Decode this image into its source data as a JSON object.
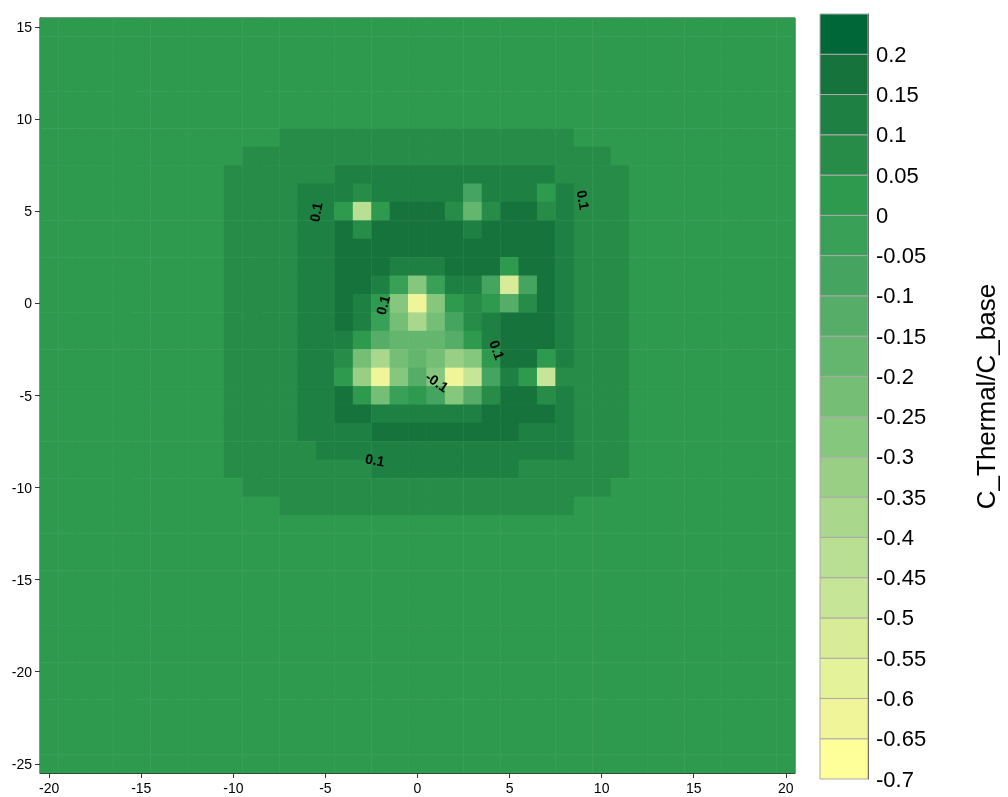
{
  "chart_data": {
    "type": "heatmap",
    "clabel": "C_Thermal/C_base",
    "categories": [
      "-20",
      null,
      null,
      null,
      null,
      "-15",
      null,
      null,
      null,
      null,
      "-10",
      null,
      null,
      null,
      null,
      "-5",
      null,
      null,
      null,
      null,
      "0",
      null,
      null,
      null,
      null,
      "5",
      null,
      null,
      null,
      null,
      "10",
      null,
      null,
      null,
      null,
      "15",
      null,
      null,
      null,
      null,
      "20"
    ],
    "y_categories": [
      "15",
      null,
      null,
      null,
      null,
      "10",
      null,
      null,
      null,
      null,
      "5",
      null,
      null,
      null,
      null,
      "0",
      null,
      null,
      null,
      null,
      "-5",
      null,
      null,
      null,
      null,
      "-10",
      null,
      null,
      null,
      null,
      "-15",
      null,
      null,
      null,
      null,
      "-20",
      null,
      null,
      null,
      null,
      "-25"
    ],
    "clim": [
      -0.7,
      0.25
    ],
    "cticks": [
      -0.7,
      -0.65,
      -0.6,
      -0.55,
      -0.5,
      -0.45,
      -0.4,
      -0.35,
      -0.3,
      -0.25,
      -0.2,
      -0.15,
      -0.1,
      -0.05,
      0,
      0.05,
      0.1,
      0.15,
      0.2
    ],
    "colors": [
      "#ffff99",
      "#f0f59a",
      "#e4f29a",
      "#d8ec98",
      "#c7e596",
      "#b8df92",
      "#a9d88c",
      "#98cf85",
      "#86c77e",
      "#74be76",
      "#64b66f",
      "#55ad67",
      "#45a45f",
      "#38a057",
      "#2e9a4e",
      "#268c48",
      "#1f8043",
      "#17733c",
      "#006838"
    ],
    "annotations": [
      "0.1",
      "0.1",
      "0.1",
      "0.1",
      "-0.1",
      "0.1"
    ],
    "cells": [
      [
        0.03,
        0.03,
        0.03,
        0.03,
        0.03,
        0.03,
        0.03,
        0.03,
        0.03,
        0.03,
        0.03,
        0.03,
        0.03,
        0.03,
        0.03,
        0.03,
        0.03,
        0.03,
        0.03,
        0.03,
        0.03,
        0.03,
        0.03,
        0.03,
        0.03,
        0.03,
        0.03,
        0.03,
        0.03,
        0.03,
        0.03,
        0.03,
        0.03,
        0.03,
        0.03,
        0.03,
        0.03,
        0.03,
        0.03,
        0.03,
        0.03
      ],
      [
        0.03,
        0.03,
        0.03,
        0.03,
        0.03,
        0.03,
        0.03,
        0.03,
        0.03,
        0.03,
        0.03,
        0.03,
        0.03,
        0.03,
        0.03,
        0.03,
        0.03,
        0.03,
        0.03,
        0.03,
        0.03,
        0.03,
        0.03,
        0.03,
        0.03,
        0.03,
        0.03,
        0.03,
        0.03,
        0.03,
        0.03,
        0.03,
        0.03,
        0.03,
        0.03,
        0.03,
        0.03,
        0.03,
        0.03,
        0.03,
        0.03
      ],
      [
        0.03,
        0.03,
        0.03,
        0.03,
        0.03,
        0.03,
        0.03,
        0.03,
        0.03,
        0.03,
        0.03,
        0.03,
        0.03,
        0.03,
        0.03,
        0.03,
        0.03,
        0.03,
        0.03,
        0.03,
        0.03,
        0.03,
        0.03,
        0.03,
        0.03,
        0.03,
        0.03,
        0.03,
        0.03,
        0.03,
        0.03,
        0.03,
        0.03,
        0.03,
        0.03,
        0.03,
        0.03,
        0.03,
        0.03,
        0.03,
        0.03
      ],
      [
        0.03,
        0.03,
        0.03,
        0.03,
        0.03,
        0.03,
        0.03,
        0.03,
        0.03,
        0.03,
        0.03,
        0.03,
        0.03,
        0.03,
        0.03,
        0.03,
        0.03,
        0.03,
        0.03,
        0.03,
        0.03,
        0.03,
        0.03,
        0.03,
        0.03,
        0.03,
        0.03,
        0.03,
        0.03,
        0.03,
        0.03,
        0.03,
        0.03,
        0.03,
        0.03,
        0.03,
        0.03,
        0.03,
        0.03,
        0.03,
        0.03
      ],
      [
        0.03,
        0.03,
        0.03,
        0.03,
        0.03,
        0.03,
        0.03,
        0.03,
        0.03,
        0.03,
        0.03,
        0.03,
        0.03,
        0.03,
        0.03,
        0.03,
        0.03,
        0.03,
        0.03,
        0.03,
        0.03,
        0.03,
        0.03,
        0.03,
        0.03,
        0.03,
        0.03,
        0.03,
        0.03,
        0.03,
        0.03,
        0.03,
        0.03,
        0.03,
        0.03,
        0.03,
        0.03,
        0.03,
        0.03,
        0.03,
        0.03
      ],
      [
        0.03,
        0.03,
        0.03,
        0.03,
        0.03,
        0.03,
        0.03,
        0.03,
        0.03,
        0.03,
        0.03,
        0.03,
        0.03,
        0.03,
        0.03,
        0.03,
        0.03,
        0.03,
        0.03,
        0.03,
        0.03,
        0.03,
        0.03,
        0.03,
        0.03,
        0.03,
        0.03,
        0.03,
        0.03,
        0.03,
        0.03,
        0.03,
        0.03,
        0.03,
        0.03,
        0.03,
        0.03,
        0.03,
        0.03,
        0.03,
        0.03
      ],
      [
        0.03,
        0.03,
        0.03,
        0.03,
        0.03,
        0.03,
        0.03,
        0.03,
        0.03,
        0.03,
        0.03,
        0.03,
        0.03,
        0.07,
        0.07,
        0.07,
        0.07,
        0.07,
        0.07,
        0.07,
        0.07,
        0.07,
        0.07,
        0.07,
        0.07,
        0.07,
        0.07,
        0.07,
        0.07,
        0.03,
        0.03,
        0.03,
        0.03,
        0.03,
        0.03,
        0.03,
        0.03,
        0.03,
        0.03,
        0.03,
        0.03
      ],
      [
        0.03,
        0.03,
        0.03,
        0.03,
        0.03,
        0.03,
        0.03,
        0.03,
        0.03,
        0.03,
        0.03,
        0.07,
        0.07,
        0.07,
        0.07,
        0.07,
        0.07,
        0.07,
        0.07,
        0.07,
        0.07,
        0.07,
        0.07,
        0.07,
        0.07,
        0.07,
        0.07,
        0.07,
        0.07,
        0.07,
        0.07,
        0.03,
        0.03,
        0.03,
        0.03,
        0.03,
        0.03,
        0.03,
        0.03,
        0.03,
        0.03
      ],
      [
        0.03,
        0.03,
        0.03,
        0.03,
        0.03,
        0.03,
        0.03,
        0.03,
        0.03,
        0.03,
        0.07,
        0.07,
        0.07,
        0.07,
        0.07,
        0.07,
        0.12,
        0.12,
        0.12,
        0.12,
        0.12,
        0.12,
        0.12,
        0.12,
        0.12,
        0.12,
        0.12,
        0.12,
        0.07,
        0.07,
        0.07,
        0.07,
        0.03,
        0.03,
        0.03,
        0.03,
        0.03,
        0.03,
        0.03,
        0.03,
        0.03
      ],
      [
        0.03,
        0.03,
        0.03,
        0.03,
        0.03,
        0.03,
        0.03,
        0.03,
        0.03,
        0.03,
        0.07,
        0.07,
        0.07,
        0.07,
        0.12,
        0.12,
        0.12,
        0.05,
        0.12,
        0.12,
        0.12,
        0.12,
        0.12,
        -0.1,
        0.12,
        0.12,
        0.12,
        0,
        0.12,
        0.07,
        0.07,
        0.07,
        0.03,
        0.03,
        0.03,
        0.03,
        0.03,
        0.03,
        0.03,
        0.03,
        0.03
      ],
      [
        0.03,
        0.03,
        0.03,
        0.03,
        0.03,
        0.03,
        0.03,
        0.03,
        0.03,
        0.03,
        0.07,
        0.07,
        0.07,
        0.07,
        0.12,
        0.12,
        0,
        -0.45,
        0,
        0.17,
        0.17,
        0.17,
        0.05,
        -0.2,
        0.05,
        0.17,
        0.17,
        0.05,
        0.12,
        0.07,
        0.07,
        0.07,
        0.03,
        0.03,
        0.03,
        0.03,
        0.03,
        0.03,
        0.03,
        0.03,
        0.03
      ],
      [
        0.03,
        0.03,
        0.03,
        0.03,
        0.03,
        0.03,
        0.03,
        0.03,
        0.03,
        0.03,
        0.07,
        0.07,
        0.07,
        0.07,
        0.12,
        0.12,
        0.17,
        0.05,
        0.17,
        0.17,
        0.17,
        0.17,
        0.17,
        0.1,
        0.17,
        0.17,
        0.17,
        0.17,
        0.12,
        0.07,
        0.07,
        0.07,
        0.03,
        0.03,
        0.03,
        0.03,
        0.03,
        0.03,
        0.03,
        0.03,
        0.03
      ],
      [
        0.03,
        0.03,
        0.03,
        0.03,
        0.03,
        0.03,
        0.03,
        0.03,
        0.03,
        0.03,
        0.07,
        0.07,
        0.07,
        0.07,
        0.12,
        0.12,
        0.17,
        0.17,
        0.17,
        0.17,
        0.17,
        0.17,
        0.17,
        0.17,
        0.17,
        0.17,
        0.17,
        0.17,
        0.12,
        0.07,
        0.07,
        0.07,
        0.03,
        0.03,
        0.03,
        0.03,
        0.03,
        0.03,
        0.03,
        0.03,
        0.03
      ],
      [
        0.03,
        0.03,
        0.03,
        0.03,
        0.03,
        0.03,
        0.03,
        0.03,
        0.03,
        0.03,
        0.07,
        0.07,
        0.07,
        0.07,
        0.12,
        0.12,
        0.17,
        0.17,
        0.17,
        0.12,
        0.1,
        0.12,
        0.17,
        0.17,
        0.17,
        0,
        0.17,
        0.17,
        0.12,
        0.07,
        0.07,
        0.07,
        0.03,
        0.03,
        0.03,
        0.03,
        0.03,
        0.03,
        0.03,
        0.03,
        0.03
      ],
      [
        0.03,
        0.03,
        0.03,
        0.03,
        0.03,
        0.03,
        0.03,
        0.03,
        0.03,
        0.03,
        0.07,
        0.07,
        0.07,
        0.07,
        0.12,
        0.12,
        0.17,
        0.17,
        0.1,
        -0.05,
        -0.3,
        -0.05,
        0.1,
        0.1,
        -0.1,
        -0.55,
        -0.1,
        0.17,
        0.12,
        0.07,
        0.07,
        0.07,
        0.03,
        0.03,
        0.03,
        0.03,
        0.03,
        0.03,
        0.03,
        0.03,
        0.03
      ],
      [
        0.03,
        0.03,
        0.03,
        0.03,
        0.03,
        0.03,
        0.03,
        0.03,
        0.03,
        0.03,
        0.07,
        0.07,
        0.07,
        0.07,
        0.12,
        0.12,
        0.17,
        0.12,
        0,
        -0.3,
        -0.65,
        -0.3,
        0,
        0.05,
        0,
        -0.15,
        0.05,
        0.17,
        0.12,
        0.07,
        0.07,
        0.07,
        0.03,
        0.03,
        0.03,
        0.03,
        0.03,
        0.03,
        0.03,
        0.03,
        0.03
      ],
      [
        0.03,
        0.03,
        0.03,
        0.03,
        0.03,
        0.03,
        0.03,
        0.03,
        0.03,
        0.03,
        0.07,
        0.07,
        0.07,
        0.07,
        0.12,
        0.12,
        0.17,
        0.1,
        -0.05,
        -0.25,
        -0.4,
        -0.25,
        -0.1,
        0.05,
        0.1,
        0.17,
        0.17,
        0.17,
        0.12,
        0.07,
        0.07,
        0.07,
        0.03,
        0.03,
        0.03,
        0.03,
        0.03,
        0.03,
        0.03,
        0.03,
        0.03
      ],
      [
        0.03,
        0.03,
        0.03,
        0.03,
        0.03,
        0.03,
        0.03,
        0.03,
        0.03,
        0.03,
        0.07,
        0.07,
        0.07,
        0.07,
        0.12,
        0.12,
        0.12,
        0,
        -0.15,
        -0.2,
        -0.2,
        -0.2,
        -0.15,
        0,
        0.12,
        0.17,
        0.17,
        0.17,
        0.12,
        0.07,
        0.07,
        0.07,
        0.03,
        0.03,
        0.03,
        0.03,
        0.03,
        0.03,
        0.03,
        0.03,
        0.03
      ],
      [
        0.03,
        0.03,
        0.03,
        0.03,
        0.03,
        0.03,
        0.03,
        0.03,
        0.03,
        0.03,
        0.07,
        0.07,
        0.07,
        0.07,
        0.12,
        0.12,
        0.05,
        -0.25,
        -0.4,
        -0.25,
        -0.2,
        -0.25,
        -0.35,
        -0.3,
        0,
        0.17,
        0.17,
        0,
        0.12,
        0.07,
        0.07,
        0.07,
        0.03,
        0.03,
        0.03,
        0.03,
        0.03,
        0.03,
        0.03,
        0.03,
        0.03
      ],
      [
        0.03,
        0.03,
        0.03,
        0.03,
        0.03,
        0.03,
        0.03,
        0.03,
        0.03,
        0.03,
        0.07,
        0.07,
        0.07,
        0.07,
        0.12,
        0.12,
        0,
        -0.35,
        -0.65,
        -0.3,
        -0.15,
        -0.3,
        -0.65,
        -0.5,
        -0.1,
        0.1,
        0,
        -0.5,
        0.05,
        0.07,
        0.07,
        0.07,
        0.03,
        0.03,
        0.03,
        0.03,
        0.03,
        0.03,
        0.03,
        0.03,
        0.03
      ],
      [
        0.03,
        0.03,
        0.03,
        0.03,
        0.03,
        0.03,
        0.03,
        0.03,
        0.03,
        0.03,
        0.07,
        0.07,
        0.07,
        0.07,
        0.12,
        0.12,
        0.17,
        0,
        -0.25,
        -0.05,
        0,
        -0.1,
        -0.3,
        -0.15,
        0.05,
        0.17,
        0.17,
        0.05,
        0.12,
        0.07,
        0.07,
        0.07,
        0.03,
        0.03,
        0.03,
        0.03,
        0.03,
        0.03,
        0.03,
        0.03,
        0.03
      ],
      [
        0.03,
        0.03,
        0.03,
        0.03,
        0.03,
        0.03,
        0.03,
        0.03,
        0.03,
        0.03,
        0.07,
        0.07,
        0.07,
        0.07,
        0.12,
        0.12,
        0.17,
        0.17,
        0.12,
        0.12,
        0.1,
        0.1,
        0.1,
        0.12,
        0.17,
        0.17,
        0.17,
        0.17,
        0.12,
        0.07,
        0.07,
        0.07,
        0.03,
        0.03,
        0.03,
        0.03,
        0.03,
        0.03,
        0.03,
        0.03,
        0.03
      ],
      [
        0.03,
        0.03,
        0.03,
        0.03,
        0.03,
        0.03,
        0.03,
        0.03,
        0.03,
        0.03,
        0.07,
        0.07,
        0.07,
        0.07,
        0.12,
        0.12,
        0.12,
        0.12,
        0.17,
        0.17,
        0.17,
        0.17,
        0.17,
        0.17,
        0.17,
        0.17,
        0.12,
        0.12,
        0.12,
        0.07,
        0.07,
        0.07,
        0.03,
        0.03,
        0.03,
        0.03,
        0.03,
        0.03,
        0.03,
        0.03,
        0.03
      ],
      [
        0.03,
        0.03,
        0.03,
        0.03,
        0.03,
        0.03,
        0.03,
        0.03,
        0.03,
        0.03,
        0.07,
        0.07,
        0.07,
        0.07,
        0.07,
        0.12,
        0.12,
        0.12,
        0.12,
        0.12,
        0.12,
        0.12,
        0.12,
        0.12,
        0.12,
        0.12,
        0.12,
        0.12,
        0.12,
        0.07,
        0.07,
        0.07,
        0.03,
        0.03,
        0.03,
        0.03,
        0.03,
        0.03,
        0.03,
        0.03,
        0.03
      ],
      [
        0.03,
        0.03,
        0.03,
        0.03,
        0.03,
        0.03,
        0.03,
        0.03,
        0.03,
        0.03,
        0.07,
        0.07,
        0.07,
        0.07,
        0.07,
        0.07,
        0.07,
        0.07,
        0.12,
        0.12,
        0.12,
        0.12,
        0.12,
        0.12,
        0.12,
        0.12,
        0.07,
        0.07,
        0.07,
        0.07,
        0.07,
        0.07,
        0.03,
        0.03,
        0.03,
        0.03,
        0.03,
        0.03,
        0.03,
        0.03,
        0.03
      ],
      [
        0.03,
        0.03,
        0.03,
        0.03,
        0.03,
        0.03,
        0.03,
        0.03,
        0.03,
        0.03,
        0.03,
        0.07,
        0.07,
        0.07,
        0.07,
        0.07,
        0.07,
        0.07,
        0.07,
        0.07,
        0.07,
        0.07,
        0.07,
        0.07,
        0.07,
        0.07,
        0.07,
        0.07,
        0.07,
        0.07,
        0.07,
        0.03,
        0.03,
        0.03,
        0.03,
        0.03,
        0.03,
        0.03,
        0.03,
        0.03,
        0.03
      ],
      [
        0.03,
        0.03,
        0.03,
        0.03,
        0.03,
        0.03,
        0.03,
        0.03,
        0.03,
        0.03,
        0.03,
        0.03,
        0.03,
        0.07,
        0.07,
        0.07,
        0.07,
        0.07,
        0.07,
        0.07,
        0.07,
        0.07,
        0.07,
        0.07,
        0.07,
        0.07,
        0.07,
        0.07,
        0.07,
        0.03,
        0.03,
        0.03,
        0.03,
        0.03,
        0.03,
        0.03,
        0.03,
        0.03,
        0.03,
        0.03,
        0.03
      ],
      [
        0.03,
        0.03,
        0.03,
        0.03,
        0.03,
        0.03,
        0.03,
        0.03,
        0.03,
        0.03,
        0.03,
        0.03,
        0.03,
        0.03,
        0.03,
        0.03,
        0.03,
        0.03,
        0.03,
        0.03,
        0.03,
        0.03,
        0.03,
        0.03,
        0.03,
        0.03,
        0.03,
        0.03,
        0.03,
        0.03,
        0.03,
        0.03,
        0.03,
        0.03,
        0.03,
        0.03,
        0.03,
        0.03,
        0.03,
        0.03,
        0.03
      ],
      [
        0.03,
        0.03,
        0.03,
        0.03,
        0.03,
        0.03,
        0.03,
        0.03,
        0.03,
        0.03,
        0.03,
        0.03,
        0.03,
        0.03,
        0.03,
        0.03,
        0.03,
        0.03,
        0.03,
        0.03,
        0.03,
        0.03,
        0.03,
        0.03,
        0.03,
        0.03,
        0.03,
        0.03,
        0.03,
        0.03,
        0.03,
        0.03,
        0.03,
        0.03,
        0.03,
        0.03,
        0.03,
        0.03,
        0.03,
        0.03,
        0.03
      ],
      [
        0.03,
        0.03,
        0.03,
        0.03,
        0.03,
        0.03,
        0.03,
        0.03,
        0.03,
        0.03,
        0.03,
        0.03,
        0.03,
        0.03,
        0.03,
        0.03,
        0.03,
        0.03,
        0.03,
        0.03,
        0.03,
        0.03,
        0.03,
        0.03,
        0.03,
        0.03,
        0.03,
        0.03,
        0.03,
        0.03,
        0.03,
        0.03,
        0.03,
        0.03,
        0.03,
        0.03,
        0.03,
        0.03,
        0.03,
        0.03,
        0.03
      ],
      [
        0.03,
        0.03,
        0.03,
        0.03,
        0.03,
        0.03,
        0.03,
        0.03,
        0.03,
        0.03,
        0.03,
        0.03,
        0.03,
        0.03,
        0.03,
        0.03,
        0.03,
        0.03,
        0.03,
        0.03,
        0.03,
        0.03,
        0.03,
        0.03,
        0.03,
        0.03,
        0.03,
        0.03,
        0.03,
        0.03,
        0.03,
        0.03,
        0.03,
        0.03,
        0.03,
        0.03,
        0.03,
        0.03,
        0.03,
        0.03,
        0.03
      ],
      [
        0.03,
        0.03,
        0.03,
        0.03,
        0.03,
        0.03,
        0.03,
        0.03,
        0.03,
        0.03,
        0.03,
        0.03,
        0.03,
        0.03,
        0.03,
        0.03,
        0.03,
        0.03,
        0.03,
        0.03,
        0.03,
        0.03,
        0.03,
        0.03,
        0.03,
        0.03,
        0.03,
        0.03,
        0.03,
        0.03,
        0.03,
        0.03,
        0.03,
        0.03,
        0.03,
        0.03,
        0.03,
        0.03,
        0.03,
        0.03,
        0.03
      ],
      [
        0.03,
        0.03,
        0.03,
        0.03,
        0.03,
        0.03,
        0.03,
        0.03,
        0.03,
        0.03,
        0.03,
        0.03,
        0.03,
        0.03,
        0.03,
        0.03,
        0.03,
        0.03,
        0.03,
        0.03,
        0.03,
        0.03,
        0.03,
        0.03,
        0.03,
        0.03,
        0.03,
        0.03,
        0.03,
        0.03,
        0.03,
        0.03,
        0.03,
        0.03,
        0.03,
        0.03,
        0.03,
        0.03,
        0.03,
        0.03,
        0.03
      ],
      [
        0.03,
        0.03,
        0.03,
        0.03,
        0.03,
        0.03,
        0.03,
        0.03,
        0.03,
        0.03,
        0.03,
        0.03,
        0.03,
        0.03,
        0.03,
        0.03,
        0.03,
        0.03,
        0.03,
        0.03,
        0.03,
        0.03,
        0.03,
        0.03,
        0.03,
        0.03,
        0.03,
        0.03,
        0.03,
        0.03,
        0.03,
        0.03,
        0.03,
        0.03,
        0.03,
        0.03,
        0.03,
        0.03,
        0.03,
        0.03,
        0.03
      ],
      [
        0.03,
        0.03,
        0.03,
        0.03,
        0.03,
        0.03,
        0.03,
        0.03,
        0.03,
        0.03,
        0.03,
        0.03,
        0.03,
        0.03,
        0.03,
        0.03,
        0.03,
        0.03,
        0.03,
        0.03,
        0.03,
        0.03,
        0.03,
        0.03,
        0.03,
        0.03,
        0.03,
        0.03,
        0.03,
        0.03,
        0.03,
        0.03,
        0.03,
        0.03,
        0.03,
        0.03,
        0.03,
        0.03,
        0.03,
        0.03,
        0.03
      ],
      [
        0.03,
        0.03,
        0.03,
        0.03,
        0.03,
        0.03,
        0.03,
        0.03,
        0.03,
        0.03,
        0.03,
        0.03,
        0.03,
        0.03,
        0.03,
        0.03,
        0.03,
        0.03,
        0.03,
        0.03,
        0.03,
        0.03,
        0.03,
        0.03,
        0.03,
        0.03,
        0.03,
        0.03,
        0.03,
        0.03,
        0.03,
        0.03,
        0.03,
        0.03,
        0.03,
        0.03,
        0.03,
        0.03,
        0.03,
        0.03,
        0.03
      ],
      [
        0.03,
        0.03,
        0.03,
        0.03,
        0.03,
        0.03,
        0.03,
        0.03,
        0.03,
        0.03,
        0.03,
        0.03,
        0.03,
        0.03,
        0.03,
        0.03,
        0.03,
        0.03,
        0.03,
        0.03,
        0.03,
        0.03,
        0.03,
        0.03,
        0.03,
        0.03,
        0.03,
        0.03,
        0.03,
        0.03,
        0.03,
        0.03,
        0.03,
        0.03,
        0.03,
        0.03,
        0.03,
        0.03,
        0.03,
        0.03,
        0.03
      ],
      [
        0.03,
        0.03,
        0.03,
        0.03,
        0.03,
        0.03,
        0.03,
        0.03,
        0.03,
        0.03,
        0.03,
        0.03,
        0.03,
        0.03,
        0.03,
        0.03,
        0.03,
        0.03,
        0.03,
        0.03,
        0.03,
        0.03,
        0.03,
        0.03,
        0.03,
        0.03,
        0.03,
        0.03,
        0.03,
        0.03,
        0.03,
        0.03,
        0.03,
        0.03,
        0.03,
        0.03,
        0.03,
        0.03,
        0.03,
        0.03,
        0.03
      ],
      [
        0.03,
        0.03,
        0.03,
        0.03,
        0.03,
        0.03,
        0.03,
        0.03,
        0.03,
        0.03,
        0.03,
        0.03,
        0.03,
        0.03,
        0.03,
        0.03,
        0.03,
        0.03,
        0.03,
        0.03,
        0.03,
        0.03,
        0.03,
        0.03,
        0.03,
        0.03,
        0.03,
        0.03,
        0.03,
        0.03,
        0.03,
        0.03,
        0.03,
        0.03,
        0.03,
        0.03,
        0.03,
        0.03,
        0.03,
        0.03,
        0.03
      ],
      [
        0.03,
        0.03,
        0.03,
        0.03,
        0.03,
        0.03,
        0.03,
        0.03,
        0.03,
        0.03,
        0.03,
        0.03,
        0.03,
        0.03,
        0.03,
        0.03,
        0.03,
        0.03,
        0.03,
        0.03,
        0.03,
        0.03,
        0.03,
        0.03,
        0.03,
        0.03,
        0.03,
        0.03,
        0.03,
        0.03,
        0.03,
        0.03,
        0.03,
        0.03,
        0.03,
        0.03,
        0.03,
        0.03,
        0.03,
        0.03,
        0.03
      ],
      [
        0.03,
        0.03,
        0.03,
        0.03,
        0.03,
        0.03,
        0.03,
        0.03,
        0.03,
        0.03,
        0.03,
        0.03,
        0.03,
        0.03,
        0.03,
        0.03,
        0.03,
        0.03,
        0.03,
        0.03,
        0.03,
        0.03,
        0.03,
        0.03,
        0.03,
        0.03,
        0.03,
        0.03,
        0.03,
        0.03,
        0.03,
        0.03,
        0.03,
        0.03,
        0.03,
        0.03,
        0.03,
        0.03,
        0.03,
        0.03,
        0.03
      ]
    ]
  }
}
